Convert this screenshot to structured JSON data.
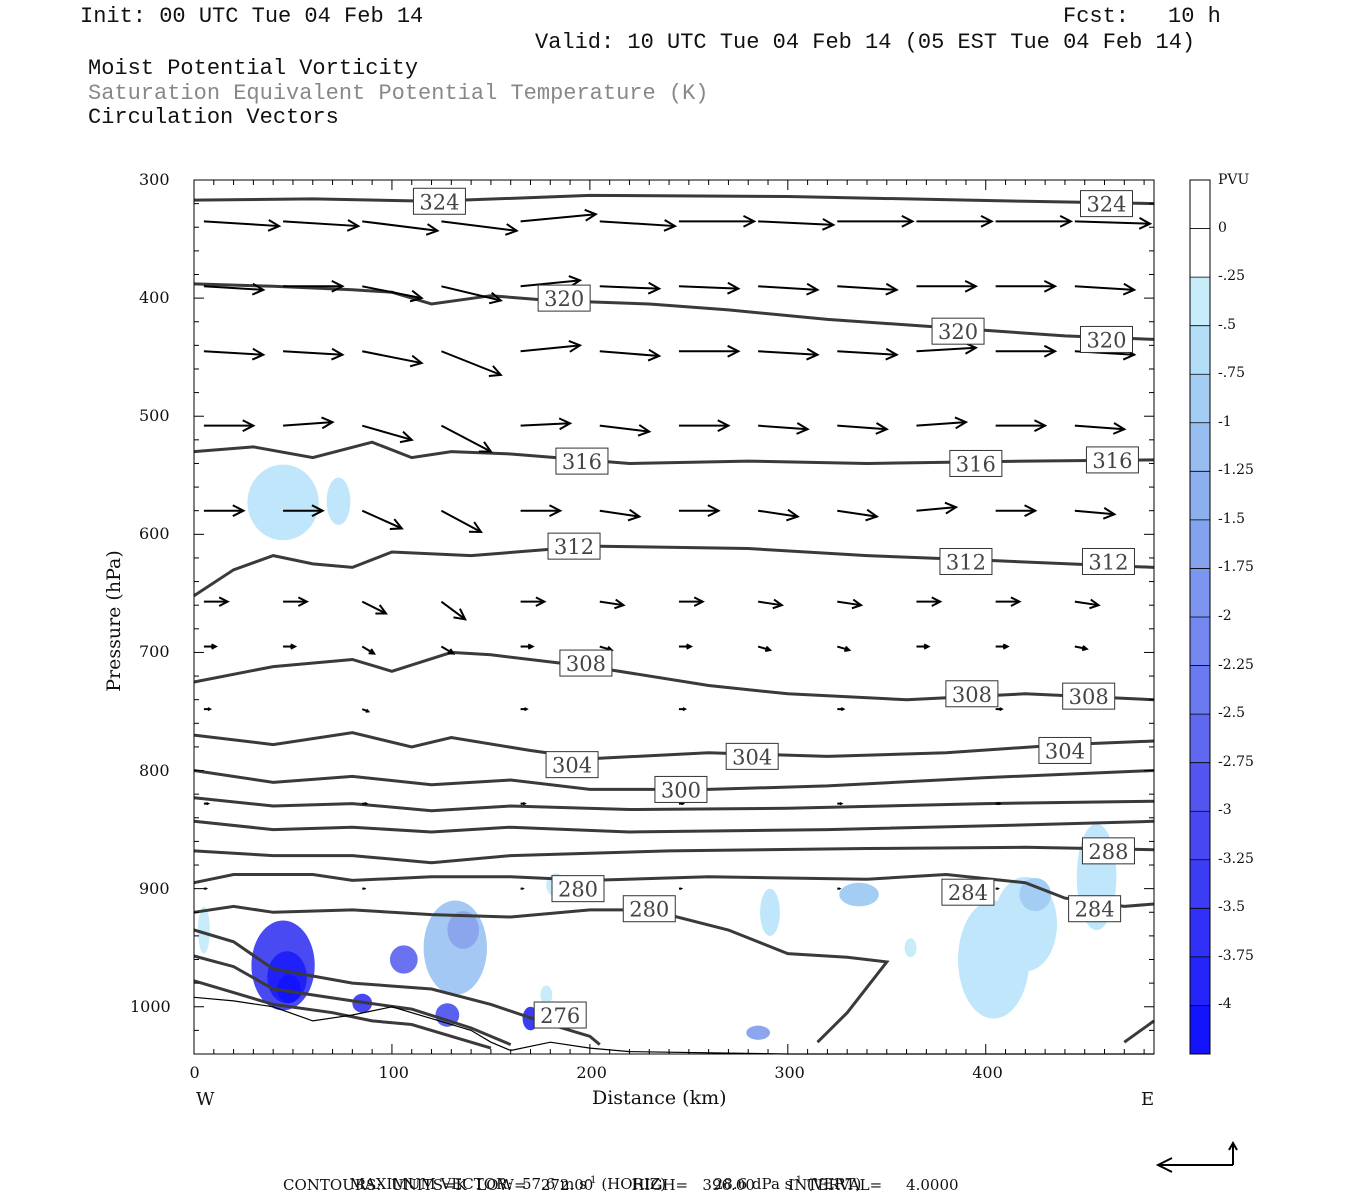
{
  "header": {
    "init": "Init: 00 UTC Tue 04 Feb 14",
    "fcst_label": "Fcst:",
    "fcst_value": "10 h",
    "valid": "Valid: 10 UTC Tue 04 Feb 14 (05 EST Tue 04 Feb 14)",
    "field1": "Moist Potential Vorticity",
    "field2": "Saturation Equivalent Potential Temperature (K)",
    "field3": "Circulation Vectors"
  },
  "colors": {
    "contour": "#3a3a3a",
    "vector": "#000000",
    "colorbar": [
      "#ffffff",
      "#ffffff",
      "#c8ecfa",
      "#b4def8",
      "#a4cdf4",
      "#98bdf0",
      "#8cb0ee",
      "#84a2ee",
      "#7c96f0",
      "#7488f0",
      "#6b7af0",
      "#6068f0",
      "#5454f0",
      "#4848f2",
      "#3c3cf4",
      "#3030f6",
      "#2424f8",
      "#1414fc"
    ]
  },
  "chart_data": {
    "type": "cross-section",
    "xlabel": "Distance (km)",
    "ylabel": "Pressure (hPa)",
    "x_ticks": [
      "0",
      "100",
      "200",
      "300",
      "400"
    ],
    "y_ticks": [
      "300",
      "400",
      "500",
      "600",
      "700",
      "800",
      "900",
      "1000"
    ],
    "xlim": [
      0,
      485
    ],
    "ylim": [
      300,
      1040
    ],
    "y_reversed": true,
    "left_label": "W",
    "right_label": "E",
    "colorbar": {
      "title": "PVU",
      "labels": [
        "0",
        "-.25",
        "-.5",
        "-.75",
        "-1",
        "-1.25",
        "-1.5",
        "-1.75",
        "-2",
        "-2.25",
        "-2.5",
        "-2.75",
        "-3",
        "-3.25",
        "-3.5",
        "-3.75",
        "-4"
      ]
    },
    "contour_labels": [
      {
        "text": "324",
        "x": 124,
        "p": 318
      },
      {
        "text": "324",
        "x": 461,
        "p": 320
      },
      {
        "text": "320",
        "x": 187,
        "p": 400
      },
      {
        "text": "320",
        "x": 386,
        "p": 428
      },
      {
        "text": "320",
        "x": 461,
        "p": 435
      },
      {
        "text": "316",
        "x": 196,
        "p": 538
      },
      {
        "text": "316",
        "x": 395,
        "p": 540
      },
      {
        "text": "316",
        "x": 464,
        "p": 537
      },
      {
        "text": "312",
        "x": 192,
        "p": 610
      },
      {
        "text": "312",
        "x": 390,
        "p": 623
      },
      {
        "text": "312",
        "x": 462,
        "p": 623
      },
      {
        "text": "308",
        "x": 198,
        "p": 709
      },
      {
        "text": "308",
        "x": 393,
        "p": 735
      },
      {
        "text": "308",
        "x": 452,
        "p": 737
      },
      {
        "text": "304",
        "x": 191,
        "p": 795
      },
      {
        "text": "304",
        "x": 282,
        "p": 788
      },
      {
        "text": "304",
        "x": 440,
        "p": 783
      },
      {
        "text": "300",
        "x": 246,
        "p": 816
      },
      {
        "text": "288",
        "x": 462,
        "p": 868
      },
      {
        "text": "284",
        "x": 391,
        "p": 903
      },
      {
        "text": "284",
        "x": 455,
        "p": 917
      },
      {
        "text": "280",
        "x": 194,
        "p": 900
      },
      {
        "text": "280",
        "x": 230,
        "p": 917
      },
      {
        "text": "276",
        "x": 185,
        "p": 1007
      }
    ],
    "footer": {
      "max_vector_label": "MAXIMUM VECTOR:",
      "max_vector_horiz": "57.6 m s",
      "horiz_suffix": "(HORIZ)",
      "max_vector_vert": "28.6 dPa s",
      "vert_suffix": "(VERT)",
      "exponent": "-1",
      "contours": "CONTOURS:  UNITS=K  LOW=   272.00        HIGH=   396.00       INTERVAL=     4.0000"
    }
  }
}
